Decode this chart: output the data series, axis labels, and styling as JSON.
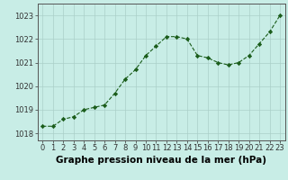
{
  "x": [
    0,
    1,
    2,
    3,
    4,
    5,
    6,
    7,
    8,
    9,
    10,
    11,
    12,
    13,
    14,
    15,
    16,
    17,
    18,
    19,
    20,
    21,
    22,
    23
  ],
  "y": [
    1018.3,
    1018.3,
    1018.6,
    1018.7,
    1019.0,
    1019.1,
    1019.2,
    1019.7,
    1020.3,
    1020.7,
    1021.3,
    1021.7,
    1022.1,
    1022.1,
    1022.0,
    1021.3,
    1021.2,
    1021.0,
    1020.9,
    1021.0,
    1021.3,
    1021.8,
    1022.3,
    1023.0
  ],
  "line_color": "#1a5c1a",
  "marker_color": "#1a5c1a",
  "bg_color": "#c8ede6",
  "grid_color": "#aacfc8",
  "xlabel": "Graphe pression niveau de la mer (hPa)",
  "ylim": [
    1017.7,
    1023.5
  ],
  "yticks": [
    1018,
    1019,
    1020,
    1021,
    1022,
    1023
  ],
  "xticks": [
    0,
    1,
    2,
    3,
    4,
    5,
    6,
    7,
    8,
    9,
    10,
    11,
    12,
    13,
    14,
    15,
    16,
    17,
    18,
    19,
    20,
    21,
    22,
    23
  ],
  "xlabel_fontsize": 7.5,
  "tick_fontsize": 6.0
}
